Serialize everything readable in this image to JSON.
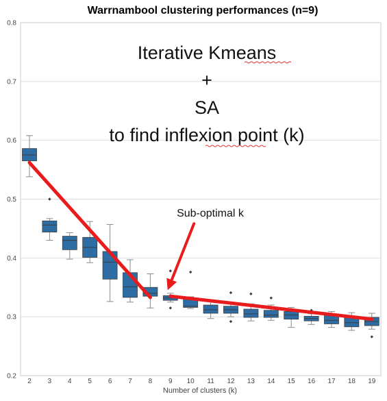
{
  "chart_data": {
    "type": "box",
    "title": "Warrnambool clustering performances (n=9)",
    "xlabel": "Number of clusters (k)",
    "ylabel": "",
    "ylim": [
      0.2,
      0.8
    ],
    "yticks": [
      "0.2",
      "0.3",
      "0.4",
      "0.5",
      "0.6",
      "0.7",
      "0.8"
    ],
    "categories": [
      "2",
      "3",
      "4",
      "5",
      "6",
      "7",
      "8",
      "9",
      "10",
      "11",
      "12",
      "13",
      "14",
      "15",
      "16",
      "17",
      "18",
      "19"
    ],
    "box_color": "#2e6da4",
    "grid": true,
    "boxes": [
      {
        "k": "2",
        "q1": 0.565,
        "median": 0.575,
        "q3": 0.586,
        "whislo": 0.538,
        "whishi": 0.608,
        "fliers": []
      },
      {
        "k": "3",
        "q1": 0.444,
        "median": 0.456,
        "q3": 0.463,
        "whislo": 0.43,
        "whishi": 0.467,
        "fliers": [
          0.5
        ]
      },
      {
        "k": "4",
        "q1": 0.414,
        "median": 0.43,
        "q3": 0.437,
        "whislo": 0.398,
        "whishi": 0.443,
        "fliers": []
      },
      {
        "k": "5",
        "q1": 0.401,
        "median": 0.418,
        "q3": 0.435,
        "whislo": 0.392,
        "whishi": 0.462,
        "fliers": []
      },
      {
        "k": "6",
        "q1": 0.364,
        "median": 0.393,
        "q3": 0.411,
        "whislo": 0.326,
        "whishi": 0.457,
        "fliers": []
      },
      {
        "k": "7",
        "q1": 0.333,
        "median": 0.351,
        "q3": 0.375,
        "whislo": 0.325,
        "whishi": 0.397,
        "fliers": []
      },
      {
        "k": "8",
        "q1": 0.335,
        "median": 0.34,
        "q3": 0.35,
        "whislo": 0.315,
        "whishi": 0.373,
        "fliers": []
      },
      {
        "k": "9",
        "q1": 0.328,
        "median": 0.332,
        "q3": 0.336,
        "whislo": 0.325,
        "whishi": 0.34,
        "fliers": [
          0.378,
          0.315
        ]
      },
      {
        "k": "10",
        "q1": 0.316,
        "median": 0.318,
        "q3": 0.332,
        "whislo": 0.314,
        "whishi": 0.334,
        "fliers": [
          0.376
        ]
      },
      {
        "k": "11",
        "q1": 0.306,
        "median": 0.312,
        "q3": 0.32,
        "whislo": 0.297,
        "whishi": 0.328,
        "fliers": []
      },
      {
        "k": "12",
        "q1": 0.306,
        "median": 0.312,
        "q3": 0.318,
        "whislo": 0.3,
        "whishi": 0.322,
        "fliers": [
          0.341,
          0.292
        ]
      },
      {
        "k": "13",
        "q1": 0.299,
        "median": 0.305,
        "q3": 0.313,
        "whislo": 0.293,
        "whishi": 0.322,
        "fliers": [
          0.339
        ]
      },
      {
        "k": "14",
        "q1": 0.299,
        "median": 0.303,
        "q3": 0.311,
        "whislo": 0.294,
        "whishi": 0.32,
        "fliers": [
          0.332
        ]
      },
      {
        "k": "15",
        "q1": 0.296,
        "median": 0.303,
        "q3": 0.309,
        "whislo": 0.282,
        "whishi": 0.316,
        "fliers": []
      },
      {
        "k": "16",
        "q1": 0.293,
        "median": 0.297,
        "q3": 0.301,
        "whislo": 0.287,
        "whishi": 0.305,
        "fliers": [
          0.311
        ]
      },
      {
        "k": "17",
        "q1": 0.288,
        "median": 0.294,
        "q3": 0.305,
        "whislo": 0.282,
        "whishi": 0.309,
        "fliers": []
      },
      {
        "k": "18",
        "q1": 0.283,
        "median": 0.29,
        "q3": 0.3,
        "whislo": 0.277,
        "whishi": 0.307,
        "fliers": []
      },
      {
        "k": "19",
        "q1": 0.285,
        "median": 0.292,
        "q3": 0.299,
        "whislo": 0.279,
        "whishi": 0.306,
        "fliers": [
          0.266
        ]
      }
    ],
    "annotations": {
      "method_lines": [
        "Iterative Kmeans",
        "+",
        "SA",
        "to find inflexion point (k)"
      ],
      "arrow_label": "Sub-optimal k",
      "line_color": "#e81c1c",
      "trend_lines": [
        {
          "from": {
            "x": "2",
            "y": 0.562
          },
          "to": {
            "x": "8",
            "y": 0.333
          }
        },
        {
          "from": {
            "x": "9",
            "y": 0.335
          },
          "to": {
            "x": "19",
            "y": 0.296
          }
        }
      ],
      "arrow": {
        "from": {
          "x": "10",
          "y": 0.435
        },
        "to": {
          "x": "9",
          "y": 0.35
        }
      }
    }
  }
}
